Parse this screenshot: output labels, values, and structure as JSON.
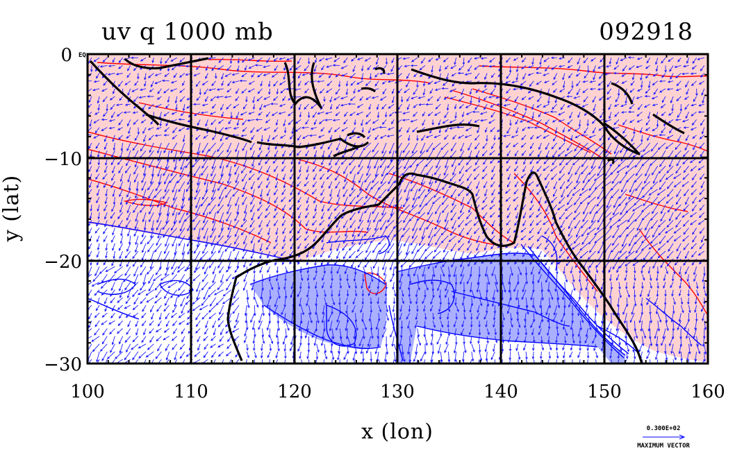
{
  "title": "uv q 1000 mb",
  "date_label": "092918",
  "chart_data": {
    "type": "map",
    "title": "uv q 1000 mb",
    "date": "092918",
    "xlabel": "x (lon)",
    "ylabel": "y (lat)",
    "xlim": [
      100,
      160
    ],
    "ylim": [
      -30,
      0
    ],
    "x_ticks": [
      100,
      110,
      120,
      130,
      140,
      150,
      160
    ],
    "y_ticks": [
      0,
      -10,
      -20,
      -30
    ],
    "y_tick_labels": [
      "0",
      "−10",
      "−20",
      "−30"
    ],
    "corner_mark": "EQ",
    "grid": true,
    "vector_field": "uv wind vectors",
    "contour_colors": {
      "positive": "#ff0000",
      "negative": "#0000ff",
      "fill_positive": "#ffcccc",
      "fill_negative": "#a8a8ff"
    }
  },
  "legend": {
    "max_value": "0.300E+02",
    "label": "MAXIMUM VECTOR",
    "arrow_color": "#0000ff"
  }
}
